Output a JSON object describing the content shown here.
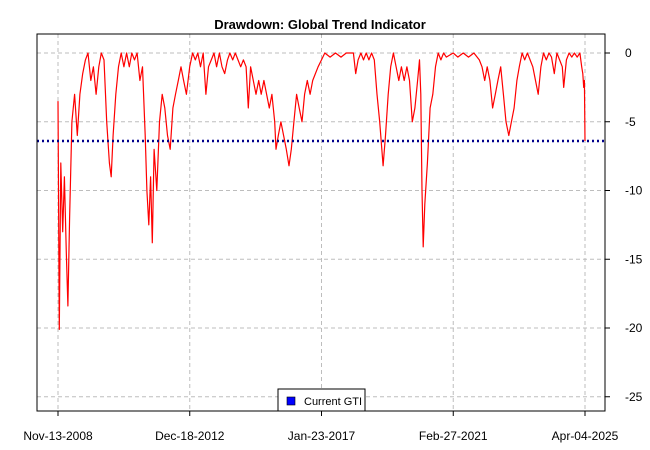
{
  "chart_data": {
    "type": "line",
    "title": "Drawdown: Global Trend Indicator",
    "xlabel": "",
    "ylabel": "",
    "x_ticks": [
      "Nov-13-2008",
      "Dec-18-2012",
      "Jan-23-2017",
      "Feb-27-2021",
      "Apr-04-2025"
    ],
    "x_range": [
      "2008-11-13",
      "2025-04-04"
    ],
    "y_ticks": [
      0,
      -5,
      -10,
      -15,
      -20,
      -25
    ],
    "ylim": [
      -26,
      1
    ],
    "y_axis_side": "right",
    "grid": true,
    "reference_line": {
      "label": "Current GTI",
      "value": -6.4,
      "color": "#00008b",
      "style": "dotted"
    },
    "legend": {
      "position": "bottom-center",
      "entries": [
        {
          "label": "Current GTI",
          "color": "#0000ff"
        }
      ]
    },
    "series": [
      {
        "color": "#ff0000",
        "points": [
          [
            "2008-11-13",
            -3.5
          ],
          [
            "2008-11-28",
            -20.1
          ],
          [
            "2008-12-15",
            -8
          ],
          [
            "2009-01-05",
            -13
          ],
          [
            "2009-01-25",
            -9
          ],
          [
            "2009-02-15",
            -14.5
          ],
          [
            "2009-03-05",
            -18.4
          ],
          [
            "2009-03-25",
            -12
          ],
          [
            "2009-04-20",
            -5
          ],
          [
            "2009-05-20",
            -3
          ],
          [
            "2009-06-20",
            -6
          ],
          [
            "2009-07-20",
            -3
          ],
          [
            "2009-08-20",
            -1.5
          ],
          [
            "2009-09-20",
            -0.5
          ],
          [
            "2009-10-20",
            0
          ],
          [
            "2009-11-20",
            -2
          ],
          [
            "2009-12-20",
            -1
          ],
          [
            "2010-01-20",
            -3
          ],
          [
            "2010-02-20",
            -1
          ],
          [
            "2010-03-20",
            0
          ],
          [
            "2010-04-20",
            -0.5
          ],
          [
            "2010-05-20",
            -5
          ],
          [
            "2010-06-20",
            -8
          ],
          [
            "2010-07-10",
            -9
          ],
          [
            "2010-08-01",
            -6
          ],
          [
            "2010-09-01",
            -3
          ],
          [
            "2010-10-01",
            -1
          ],
          [
            "2010-11-01",
            0
          ],
          [
            "2010-12-01",
            -1
          ],
          [
            "2011-01-01",
            0
          ],
          [
            "2011-02-01",
            -1
          ],
          [
            "2011-03-01",
            0
          ],
          [
            "2011-04-01",
            -0.5
          ],
          [
            "2011-05-01",
            0
          ],
          [
            "2011-06-01",
            -2
          ],
          [
            "2011-07-01",
            -1
          ],
          [
            "2011-08-01",
            -6
          ],
          [
            "2011-08-20",
            -10
          ],
          [
            "2011-09-10",
            -12.5
          ],
          [
            "2011-10-01",
            -9
          ],
          [
            "2011-10-20",
            -13.8
          ],
          [
            "2011-11-10",
            -7
          ],
          [
            "2011-12-10",
            -10
          ],
          [
            "2012-01-10",
            -5
          ],
          [
            "2012-02-10",
            -3
          ],
          [
            "2012-03-10",
            -4
          ],
          [
            "2012-04-10",
            -6
          ],
          [
            "2012-05-10",
            -7
          ],
          [
            "2012-06-10",
            -4
          ],
          [
            "2012-07-10",
            -3
          ],
          [
            "2012-08-10",
            -2
          ],
          [
            "2012-09-10",
            -1
          ],
          [
            "2012-10-10",
            -2
          ],
          [
            "2012-11-10",
            -3
          ],
          [
            "2012-12-18",
            -1
          ],
          [
            "2013-01-20",
            0
          ],
          [
            "2013-02-20",
            -0.5
          ],
          [
            "2013-03-20",
            0
          ],
          [
            "2013-04-20",
            -1
          ],
          [
            "2013-05-20",
            0
          ],
          [
            "2013-06-20",
            -3
          ],
          [
            "2013-07-20",
            -1
          ],
          [
            "2013-08-20",
            -0.5
          ],
          [
            "2013-09-20",
            0
          ],
          [
            "2013-10-20",
            -1
          ],
          [
            "2013-11-20",
            0
          ],
          [
            "2013-12-20",
            -1
          ],
          [
            "2014-01-20",
            -1.5
          ],
          [
            "2014-02-20",
            -0.5
          ],
          [
            "2014-03-20",
            0
          ],
          [
            "2014-04-20",
            -0.5
          ],
          [
            "2014-05-20",
            0
          ],
          [
            "2014-06-20",
            -0.5
          ],
          [
            "2014-07-20",
            -1
          ],
          [
            "2014-08-20",
            -0.5
          ],
          [
            "2014-09-20",
            -1
          ],
          [
            "2014-10-15",
            -4
          ],
          [
            "2014-11-10",
            -1
          ],
          [
            "2014-12-10",
            -2
          ],
          [
            "2015-01-10",
            -3
          ],
          [
            "2015-02-10",
            -2
          ],
          [
            "2015-03-10",
            -3
          ],
          [
            "2015-04-10",
            -2
          ],
          [
            "2015-05-10",
            -3
          ],
          [
            "2015-06-10",
            -4
          ],
          [
            "2015-07-10",
            -3
          ],
          [
            "2015-08-10",
            -5
          ],
          [
            "2015-08-25",
            -7
          ],
          [
            "2015-09-20",
            -6
          ],
          [
            "2015-10-20",
            -5
          ],
          [
            "2015-11-20",
            -6
          ],
          [
            "2015-12-20",
            -7
          ],
          [
            "2016-01-20",
            -8.2
          ],
          [
            "2016-02-15",
            -7
          ],
          [
            "2016-03-15",
            -5
          ],
          [
            "2016-04-15",
            -3
          ],
          [
            "2016-05-15",
            -4
          ],
          [
            "2016-06-15",
            -5
          ],
          [
            "2016-07-15",
            -3
          ],
          [
            "2016-08-15",
            -2
          ],
          [
            "2016-09-15",
            -3
          ],
          [
            "2016-10-15",
            -2
          ],
          [
            "2016-11-15",
            -1.5
          ],
          [
            "2016-12-15",
            -1
          ],
          [
            "2017-01-23",
            -0.5
          ],
          [
            "2017-03-01",
            0
          ],
          [
            "2017-05-01",
            -0.3
          ],
          [
            "2017-07-01",
            0
          ],
          [
            "2017-09-01",
            -0.3
          ],
          [
            "2017-11-01",
            0
          ],
          [
            "2018-01-20",
            0
          ],
          [
            "2018-02-15",
            -1.5
          ],
          [
            "2018-03-15",
            -0.5
          ],
          [
            "2018-04-15",
            0
          ],
          [
            "2018-05-15",
            -0.5
          ],
          [
            "2018-06-15",
            0
          ],
          [
            "2018-07-15",
            -0.5
          ],
          [
            "2018-08-15",
            0
          ],
          [
            "2018-09-15",
            -0.5
          ],
          [
            "2018-10-15",
            -3
          ],
          [
            "2018-11-15",
            -5
          ],
          [
            "2018-12-24",
            -8.2
          ],
          [
            "2019-01-20",
            -6
          ],
          [
            "2019-02-20",
            -3
          ],
          [
            "2019-03-20",
            -1
          ],
          [
            "2019-04-20",
            0
          ],
          [
            "2019-05-20",
            -1
          ],
          [
            "2019-06-20",
            -2
          ],
          [
            "2019-07-20",
            -1
          ],
          [
            "2019-08-20",
            -2
          ],
          [
            "2019-09-20",
            -1
          ],
          [
            "2019-10-20",
            -2
          ],
          [
            "2019-11-20",
            -5
          ],
          [
            "2019-12-20",
            -4
          ],
          [
            "2020-01-20",
            -2
          ],
          [
            "2020-02-10",
            -0.5
          ],
          [
            "2020-02-25",
            -3
          ],
          [
            "2020-03-10",
            -10
          ],
          [
            "2020-03-23",
            -14.1
          ],
          [
            "2020-04-10",
            -11
          ],
          [
            "2020-05-10",
            -8
          ],
          [
            "2020-06-10",
            -4
          ],
          [
            "2020-07-10",
            -3
          ],
          [
            "2020-08-10",
            -1
          ],
          [
            "2020-09-10",
            0
          ],
          [
            "2020-10-10",
            -0.5
          ],
          [
            "2020-11-10",
            0
          ],
          [
            "2020-12-10",
            -0.3
          ],
          [
            "2021-02-27",
            0
          ],
          [
            "2021-04-20",
            -0.3
          ],
          [
            "2021-06-20",
            0
          ],
          [
            "2021-08-20",
            -0.3
          ],
          [
            "2021-10-20",
            0
          ],
          [
            "2021-12-20",
            -0.5
          ],
          [
            "2022-01-20",
            -1
          ],
          [
            "2022-02-20",
            -2
          ],
          [
            "2022-03-20",
            -1
          ],
          [
            "2022-04-20",
            -2
          ],
          [
            "2022-05-20",
            -4
          ],
          [
            "2022-06-20",
            -3
          ],
          [
            "2022-07-20",
            -2
          ],
          [
            "2022-08-20",
            -1
          ],
          [
            "2022-09-20",
            -3
          ],
          [
            "2022-10-20",
            -5
          ],
          [
            "2022-11-20",
            -6
          ],
          [
            "2022-12-20",
            -5
          ],
          [
            "2023-01-20",
            -4
          ],
          [
            "2023-02-20",
            -2
          ],
          [
            "2023-03-20",
            -1
          ],
          [
            "2023-04-20",
            0
          ],
          [
            "2023-05-20",
            -0.5
          ],
          [
            "2023-06-20",
            0
          ],
          [
            "2023-07-20",
            -0.5
          ],
          [
            "2023-08-20",
            -1
          ],
          [
            "2023-09-20",
            -2
          ],
          [
            "2023-10-20",
            -3
          ],
          [
            "2023-11-20",
            -1
          ],
          [
            "2023-12-20",
            0
          ],
          [
            "2024-01-20",
            -0.5
          ],
          [
            "2024-02-20",
            0
          ],
          [
            "2024-03-20",
            -0.3
          ],
          [
            "2024-04-20",
            -1.5
          ],
          [
            "2024-05-20",
            0
          ],
          [
            "2024-06-20",
            -0.5
          ],
          [
            "2024-07-20",
            -1
          ],
          [
            "2024-08-05",
            -2.5
          ],
          [
            "2024-09-05",
            -0.5
          ],
          [
            "2024-10-05",
            0
          ],
          [
            "2024-11-05",
            -0.3
          ],
          [
            "2024-12-05",
            0
          ],
          [
            "2025-01-05",
            -0.3
          ],
          [
            "2025-02-05",
            0
          ],
          [
            "2025-02-25",
            -1
          ],
          [
            "2025-03-10",
            -1.5
          ],
          [
            "2025-03-20",
            -2.5
          ],
          [
            "2025-03-28",
            -2
          ],
          [
            "2025-04-04",
            -6.4
          ]
        ]
      }
    ]
  }
}
